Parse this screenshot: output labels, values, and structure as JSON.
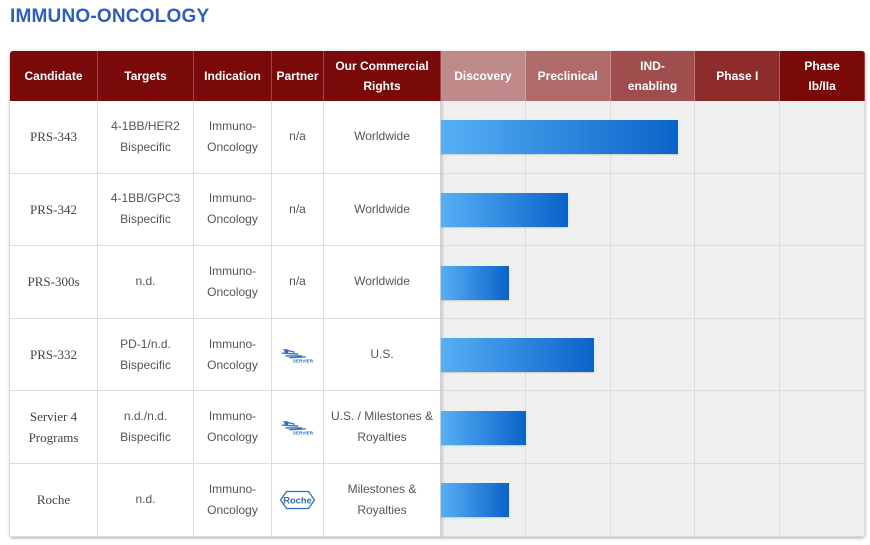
{
  "title": "IMMUNO-ONCOLOGY",
  "header": {
    "candidate": "Candidate",
    "targets": "Targets",
    "indication": "Indication",
    "partner": "Partner",
    "rights": "Our Commercial Rights",
    "phases": [
      "Discovery",
      "Preclinical",
      "IND-enabling",
      "Phase I",
      "Phase Ib/IIa"
    ]
  },
  "colors": {
    "title": "#2f5fbd",
    "header_dark": "#7a0a0a",
    "phase_headers": [
      "#c08a8a",
      "#b06a6a",
      "#a04d4d",
      "#8e2b2b",
      "#7a0a0a"
    ],
    "bar_start": "#56b0f5",
    "bar_end": "#0a63c8"
  },
  "partner_logos": {
    "servier": {
      "icon": "servier-logo-icon",
      "text": "SERVIER"
    },
    "roche": {
      "icon": "roche-logo-icon",
      "text": "Roche"
    }
  },
  "rows": [
    {
      "candidate": "PRS-343",
      "targets": "4-1BB/HER2 Bispecific",
      "indication": "Immuno-Oncology",
      "partner": "n/a",
      "partner_logo": "",
      "rights": "Worldwide"
    },
    {
      "candidate": "PRS-342",
      "targets": "4-1BB/GPC3 Bispecific",
      "indication": "Immuno-Oncology",
      "partner": "n/a",
      "partner_logo": "",
      "rights": "Worldwide"
    },
    {
      "candidate": "PRS-300s",
      "targets": "n.d.",
      "indication": "Immuno-Oncology",
      "partner": "n/a",
      "partner_logo": "",
      "rights": "Worldwide"
    },
    {
      "candidate": "PRS-332",
      "targets": "PD-1/n.d. Bispecific",
      "indication": "Immuno-Oncology",
      "partner": "",
      "partner_logo": "servier",
      "rights": "U.S."
    },
    {
      "candidate": "Servier 4 Programs",
      "targets": "n.d./n.d. Bispecific",
      "indication": "Immuno-Oncology",
      "partner": "",
      "partner_logo": "servier",
      "rights": "U.S. / Milestones & Royalties"
    },
    {
      "candidate": "Roche",
      "targets": "n.d.",
      "indication": "Immuno-Oncology",
      "partner": "",
      "partner_logo": "roche",
      "rights": "Milestones & Royalties"
    }
  ],
  "chart_data": {
    "type": "bar",
    "orientation": "horizontal",
    "title": "IMMUNO-ONCOLOGY",
    "categories": [
      "PRS-343",
      "PRS-342",
      "PRS-300s",
      "PRS-332",
      "Servier 4 Programs",
      "Roche"
    ],
    "stages": [
      "Discovery",
      "Preclinical",
      "IND-enabling",
      "Phase I",
      "Phase Ib/IIa"
    ],
    "values": [
      2.8,
      1.5,
      0.8,
      1.8,
      1.0,
      0.8
    ],
    "xlim": [
      0,
      5
    ],
    "grid": true,
    "legend": "none"
  }
}
